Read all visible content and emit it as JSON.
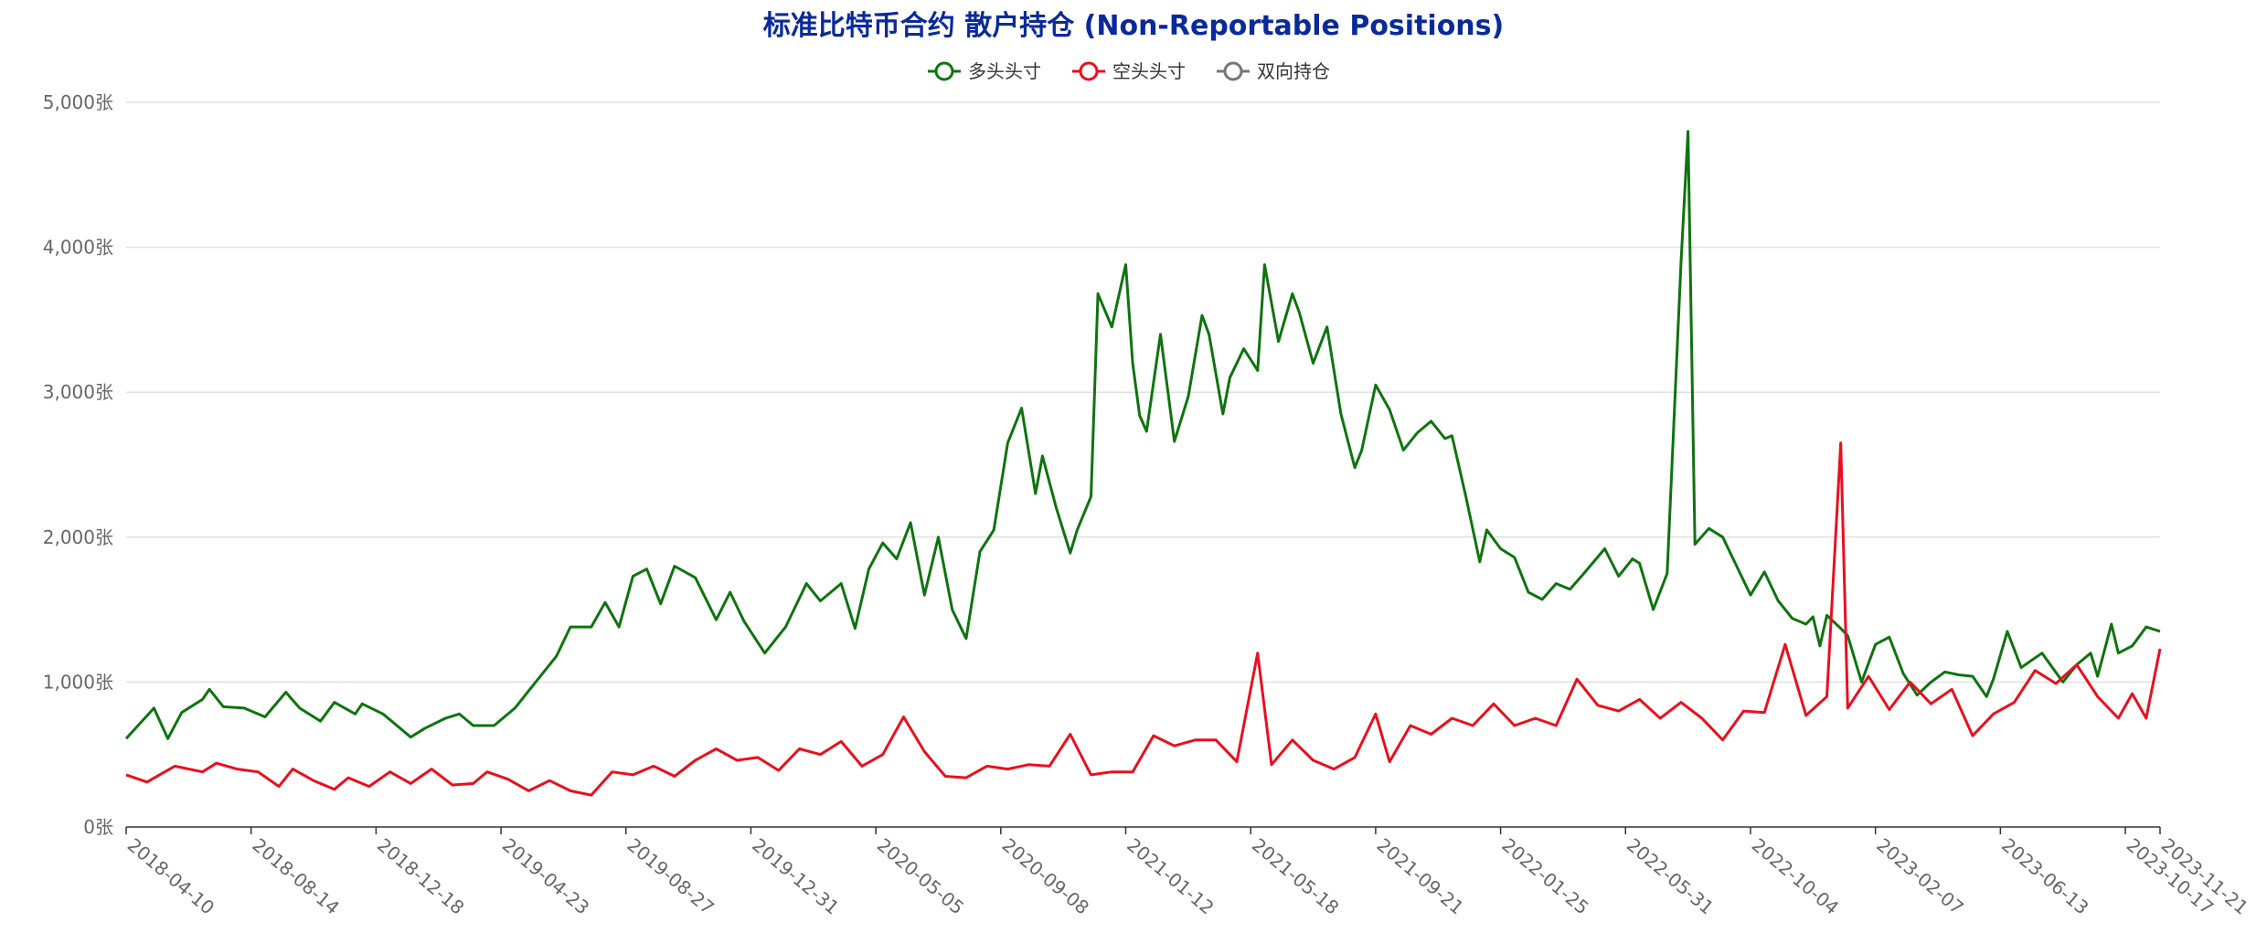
{
  "chart_data": {
    "type": "line",
    "title": "标准比特币合约 散户持仓 (Non-Reportable Positions)",
    "y_unit": "张",
    "ylim": [
      0,
      5000
    ],
    "yticks": [
      "0张",
      "1,000张",
      "2,000张",
      "3,000张",
      "4,000张",
      "5,000张"
    ],
    "x_range": [
      "2018-04-10",
      "2023-11-21"
    ],
    "xticks": [
      "2018-04-10",
      "2018-08-14",
      "2018-12-18",
      "2019-04-23",
      "2019-08-27",
      "2019-12-31",
      "2020-05-05",
      "2020-09-08",
      "2021-01-12",
      "2021-05-18",
      "2021-09-21",
      "2022-01-25",
      "2022-05-31",
      "2022-10-04",
      "2023-02-07",
      "2023-06-13",
      "2023-10-17",
      "2023-11-21"
    ],
    "legend_position": "top-center",
    "grid": true,
    "series": [
      {
        "name": "多头头寸",
        "color": "#0f730f",
        "points": [
          [
            "2018-04-10",
            610
          ],
          [
            "2018-05-08",
            820
          ],
          [
            "2018-05-22",
            610
          ],
          [
            "2018-06-05",
            790
          ],
          [
            "2018-06-26",
            880
          ],
          [
            "2018-07-03",
            950
          ],
          [
            "2018-07-17",
            830
          ],
          [
            "2018-08-07",
            820
          ],
          [
            "2018-08-28",
            760
          ],
          [
            "2018-09-18",
            930
          ],
          [
            "2018-10-02",
            820
          ],
          [
            "2018-10-23",
            730
          ],
          [
            "2018-11-06",
            860
          ],
          [
            "2018-11-27",
            780
          ],
          [
            "2018-12-04",
            850
          ],
          [
            "2018-12-25",
            780
          ],
          [
            "2019-01-08",
            700
          ],
          [
            "2019-01-22",
            620
          ],
          [
            "2019-02-05",
            680
          ],
          [
            "2019-02-26",
            750
          ],
          [
            "2019-03-12",
            780
          ],
          [
            "2019-03-26",
            700
          ],
          [
            "2019-04-16",
            700
          ],
          [
            "2019-05-07",
            820
          ],
          [
            "2019-05-28",
            1000
          ],
          [
            "2019-06-18",
            1180
          ],
          [
            "2019-07-02",
            1380
          ],
          [
            "2019-07-23",
            1380
          ],
          [
            "2019-08-06",
            1550
          ],
          [
            "2019-08-20",
            1380
          ],
          [
            "2019-09-03",
            1730
          ],
          [
            "2019-09-17",
            1780
          ],
          [
            "2019-10-01",
            1540
          ],
          [
            "2019-10-15",
            1800
          ],
          [
            "2019-11-05",
            1720
          ],
          [
            "2019-11-26",
            1430
          ],
          [
            "2019-12-10",
            1620
          ],
          [
            "2019-12-24",
            1420
          ],
          [
            "2020-01-14",
            1200
          ],
          [
            "2020-02-04",
            1380
          ],
          [
            "2020-02-25",
            1680
          ],
          [
            "2020-03-10",
            1560
          ],
          [
            "2020-03-31",
            1680
          ],
          [
            "2020-04-14",
            1370
          ],
          [
            "2020-04-28",
            1780
          ],
          [
            "2020-05-12",
            1960
          ],
          [
            "2020-05-26",
            1850
          ],
          [
            "2020-06-09",
            2100
          ],
          [
            "2020-06-23",
            1600
          ],
          [
            "2020-07-07",
            2000
          ],
          [
            "2020-07-21",
            1500
          ],
          [
            "2020-08-04",
            1300
          ],
          [
            "2020-08-18",
            1900
          ],
          [
            "2020-09-01",
            2050
          ],
          [
            "2020-09-15",
            2650
          ],
          [
            "2020-09-29",
            2890
          ],
          [
            "2020-10-13",
            2300
          ],
          [
            "2020-10-20",
            2560
          ],
          [
            "2020-11-03",
            2200
          ],
          [
            "2020-11-17",
            1890
          ],
          [
            "2020-11-24",
            2050
          ],
          [
            "2020-12-08",
            2280
          ],
          [
            "2020-12-15",
            3680
          ],
          [
            "2020-12-29",
            3450
          ],
          [
            "2021-01-12",
            3880
          ],
          [
            "2021-01-19",
            3200
          ],
          [
            "2021-01-26",
            2840
          ],
          [
            "2021-02-02",
            2730
          ],
          [
            "2021-02-16",
            3400
          ],
          [
            "2021-03-02",
            2660
          ],
          [
            "2021-03-16",
            2970
          ],
          [
            "2021-03-30",
            3530
          ],
          [
            "2021-04-06",
            3400
          ],
          [
            "2021-04-20",
            2850
          ],
          [
            "2021-04-27",
            3100
          ],
          [
            "2021-05-11",
            3300
          ],
          [
            "2021-05-25",
            3150
          ],
          [
            "2021-06-01",
            3880
          ],
          [
            "2021-06-15",
            3350
          ],
          [
            "2021-06-29",
            3680
          ],
          [
            "2021-07-06",
            3550
          ],
          [
            "2021-07-20",
            3200
          ],
          [
            "2021-08-03",
            3450
          ],
          [
            "2021-08-17",
            2850
          ],
          [
            "2021-08-31",
            2480
          ],
          [
            "2021-09-07",
            2600
          ],
          [
            "2021-09-21",
            3050
          ],
          [
            "2021-10-05",
            2880
          ],
          [
            "2021-10-19",
            2600
          ],
          [
            "2021-11-02",
            2720
          ],
          [
            "2021-11-16",
            2800
          ],
          [
            "2021-11-30",
            2680
          ],
          [
            "2021-12-07",
            2700
          ],
          [
            "2021-12-21",
            2280
          ],
          [
            "2022-01-04",
            1830
          ],
          [
            "2022-01-11",
            2050
          ],
          [
            "2022-01-25",
            1920
          ],
          [
            "2022-02-08",
            1860
          ],
          [
            "2022-02-22",
            1620
          ],
          [
            "2022-03-08",
            1570
          ],
          [
            "2022-03-22",
            1680
          ],
          [
            "2022-04-05",
            1640
          ],
          [
            "2022-04-19",
            1750
          ],
          [
            "2022-05-10",
            1920
          ],
          [
            "2022-05-24",
            1730
          ],
          [
            "2022-06-07",
            1850
          ],
          [
            "2022-06-14",
            1820
          ],
          [
            "2022-06-28",
            1500
          ],
          [
            "2022-07-12",
            1750
          ],
          [
            "2022-07-26",
            3900
          ],
          [
            "2022-08-02",
            4800
          ],
          [
            "2022-08-09",
            1950
          ],
          [
            "2022-08-23",
            2060
          ],
          [
            "2022-09-06",
            2000
          ],
          [
            "2022-09-20",
            1800
          ],
          [
            "2022-10-04",
            1600
          ],
          [
            "2022-10-18",
            1760
          ],
          [
            "2022-11-01",
            1560
          ],
          [
            "2022-11-15",
            1440
          ],
          [
            "2022-11-29",
            1400
          ],
          [
            "2022-12-06",
            1450
          ],
          [
            "2022-12-13",
            1250
          ],
          [
            "2022-12-20",
            1460
          ],
          [
            "2023-01-03",
            1370
          ],
          [
            "2023-01-10",
            1320
          ],
          [
            "2023-01-24",
            1000
          ],
          [
            "2023-02-07",
            1260
          ],
          [
            "2023-02-21",
            1310
          ],
          [
            "2023-03-07",
            1060
          ],
          [
            "2023-03-21",
            910
          ],
          [
            "2023-04-04",
            1000
          ],
          [
            "2023-04-18",
            1070
          ],
          [
            "2023-05-02",
            1050
          ],
          [
            "2023-05-16",
            1040
          ],
          [
            "2023-05-30",
            900
          ],
          [
            "2023-06-06",
            1020
          ],
          [
            "2023-06-20",
            1350
          ],
          [
            "2023-07-04",
            1100
          ],
          [
            "2023-07-25",
            1200
          ],
          [
            "2023-08-15",
            1000
          ],
          [
            "2023-08-29",
            1120
          ],
          [
            "2023-09-12",
            1200
          ],
          [
            "2023-09-19",
            1040
          ],
          [
            "2023-10-03",
            1400
          ],
          [
            "2023-10-10",
            1200
          ],
          [
            "2023-10-24",
            1250
          ],
          [
            "2023-11-07",
            1380
          ],
          [
            "2023-11-21",
            1350
          ]
        ]
      },
      {
        "name": "空头头寸",
        "color": "#e8101e",
        "points": [
          [
            "2018-04-10",
            360
          ],
          [
            "2018-05-01",
            310
          ],
          [
            "2018-05-29",
            420
          ],
          [
            "2018-06-26",
            380
          ],
          [
            "2018-07-10",
            440
          ],
          [
            "2018-07-31",
            400
          ],
          [
            "2018-08-21",
            380
          ],
          [
            "2018-09-11",
            280
          ],
          [
            "2018-09-25",
            400
          ],
          [
            "2018-10-16",
            320
          ],
          [
            "2018-11-06",
            260
          ],
          [
            "2018-11-20",
            340
          ],
          [
            "2018-12-11",
            280
          ],
          [
            "2019-01-01",
            380
          ],
          [
            "2019-01-22",
            300
          ],
          [
            "2019-02-12",
            400
          ],
          [
            "2019-03-05",
            290
          ],
          [
            "2019-03-26",
            300
          ],
          [
            "2019-04-09",
            380
          ],
          [
            "2019-04-30",
            330
          ],
          [
            "2019-05-21",
            250
          ],
          [
            "2019-06-11",
            320
          ],
          [
            "2019-07-02",
            250
          ],
          [
            "2019-07-23",
            220
          ],
          [
            "2019-08-13",
            380
          ],
          [
            "2019-09-03",
            360
          ],
          [
            "2019-09-24",
            420
          ],
          [
            "2019-10-15",
            350
          ],
          [
            "2019-11-05",
            460
          ],
          [
            "2019-11-26",
            540
          ],
          [
            "2019-12-17",
            460
          ],
          [
            "2020-01-07",
            480
          ],
          [
            "2020-01-28",
            390
          ],
          [
            "2020-02-18",
            540
          ],
          [
            "2020-03-10",
            500
          ],
          [
            "2020-03-31",
            590
          ],
          [
            "2020-04-21",
            420
          ],
          [
            "2020-05-12",
            500
          ],
          [
            "2020-06-02",
            760
          ],
          [
            "2020-06-23",
            520
          ],
          [
            "2020-07-14",
            350
          ],
          [
            "2020-08-04",
            340
          ],
          [
            "2020-08-25",
            420
          ],
          [
            "2020-09-15",
            400
          ],
          [
            "2020-10-06",
            430
          ],
          [
            "2020-10-27",
            420
          ],
          [
            "2020-11-17",
            640
          ],
          [
            "2020-12-08",
            360
          ],
          [
            "2020-12-29",
            380
          ],
          [
            "2021-01-19",
            380
          ],
          [
            "2021-02-09",
            630
          ],
          [
            "2021-03-02",
            560
          ],
          [
            "2021-03-23",
            600
          ],
          [
            "2021-04-13",
            600
          ],
          [
            "2021-05-04",
            450
          ],
          [
            "2021-05-25",
            1200
          ],
          [
            "2021-06-08",
            430
          ],
          [
            "2021-06-29",
            600
          ],
          [
            "2021-07-20",
            460
          ],
          [
            "2021-08-10",
            400
          ],
          [
            "2021-08-31",
            480
          ],
          [
            "2021-09-21",
            780
          ],
          [
            "2021-10-05",
            450
          ],
          [
            "2021-10-26",
            700
          ],
          [
            "2021-11-16",
            640
          ],
          [
            "2021-12-07",
            750
          ],
          [
            "2021-12-28",
            700
          ],
          [
            "2022-01-18",
            850
          ],
          [
            "2022-02-08",
            700
          ],
          [
            "2022-03-01",
            750
          ],
          [
            "2022-03-22",
            700
          ],
          [
            "2022-04-12",
            1020
          ],
          [
            "2022-05-03",
            840
          ],
          [
            "2022-05-24",
            800
          ],
          [
            "2022-06-14",
            880
          ],
          [
            "2022-07-05",
            750
          ],
          [
            "2022-07-26",
            860
          ],
          [
            "2022-08-16",
            750
          ],
          [
            "2022-09-06",
            600
          ],
          [
            "2022-09-27",
            800
          ],
          [
            "2022-10-18",
            790
          ],
          [
            "2022-11-08",
            1260
          ],
          [
            "2022-11-29",
            770
          ],
          [
            "2022-12-20",
            900
          ],
          [
            "2023-01-03",
            2650
          ],
          [
            "2023-01-10",
            820
          ],
          [
            "2023-01-31",
            1040
          ],
          [
            "2023-02-21",
            810
          ],
          [
            "2023-03-14",
            1000
          ],
          [
            "2023-04-04",
            850
          ],
          [
            "2023-04-25",
            950
          ],
          [
            "2023-05-16",
            630
          ],
          [
            "2023-06-06",
            780
          ],
          [
            "2023-06-27",
            860
          ],
          [
            "2023-07-18",
            1080
          ],
          [
            "2023-08-08",
            990
          ],
          [
            "2023-08-29",
            1120
          ],
          [
            "2023-09-19",
            900
          ],
          [
            "2023-10-10",
            750
          ],
          [
            "2023-10-24",
            920
          ],
          [
            "2023-11-07",
            750
          ],
          [
            "2023-11-21",
            1230
          ]
        ]
      },
      {
        "name": "双向持仓",
        "color": "#757575",
        "points": []
      }
    ]
  }
}
